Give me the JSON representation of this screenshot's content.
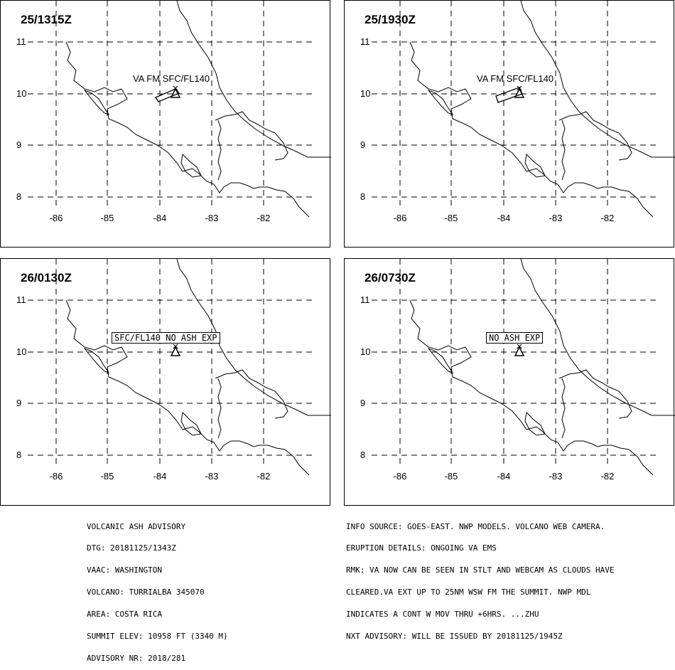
{
  "panels": [
    {
      "time": "25/1315Z",
      "note": "VA FM SFC/FL140",
      "boxed": false,
      "ash": "A"
    },
    {
      "time": "25/1930Z",
      "note": "VA FM SFC/FL140",
      "boxed": false,
      "ash": "B"
    },
    {
      "time": "26/0130Z",
      "note": "SFC/FL140 NO ASH EXP",
      "boxed": true,
      "ash": ""
    },
    {
      "time": "26/0730Z",
      "note": "NO ASH EXP",
      "boxed": true,
      "ash": ""
    }
  ],
  "lat_labels": [
    "11",
    "10",
    "9",
    "8"
  ],
  "lon_labels": [
    "-86",
    "-85",
    "-84",
    "-83",
    "-82"
  ],
  "volcano_symbol": "volcano-triangle-icon",
  "footer_left": [
    "VOLCANIC ASH ADVISORY",
    "DTG: 20181125/1343Z",
    "VAAC: WASHINGTON",
    "VOLCANO: TURRIALBA 345070",
    "AREA: COSTA RICA",
    "SUMMIT ELEV: 10958 FT (3340 M)",
    "ADVISORY NR: 2018/281"
  ],
  "footer_right": [
    "INFO SOURCE: GOES-EAST. NWP MODELS. VOLCANO WEB CAMERA.",
    "ERUPTION DETAILS: ONGOING VA EMS",
    "RMK: VA NOW CAN BE SEEN IN STLT AND WEBCAM AS CLOUDS HAVE",
    "CLEARED.VA EXT UP TO 25NM WSW FM THE SUMMIT. NWP MDL",
    "INDICATES A CONT W MOV THRU +6HRS. ...ZHU",
    "NXT ADVISORY: WILL BE ISSUED BY 20181125/1945Z"
  ]
}
